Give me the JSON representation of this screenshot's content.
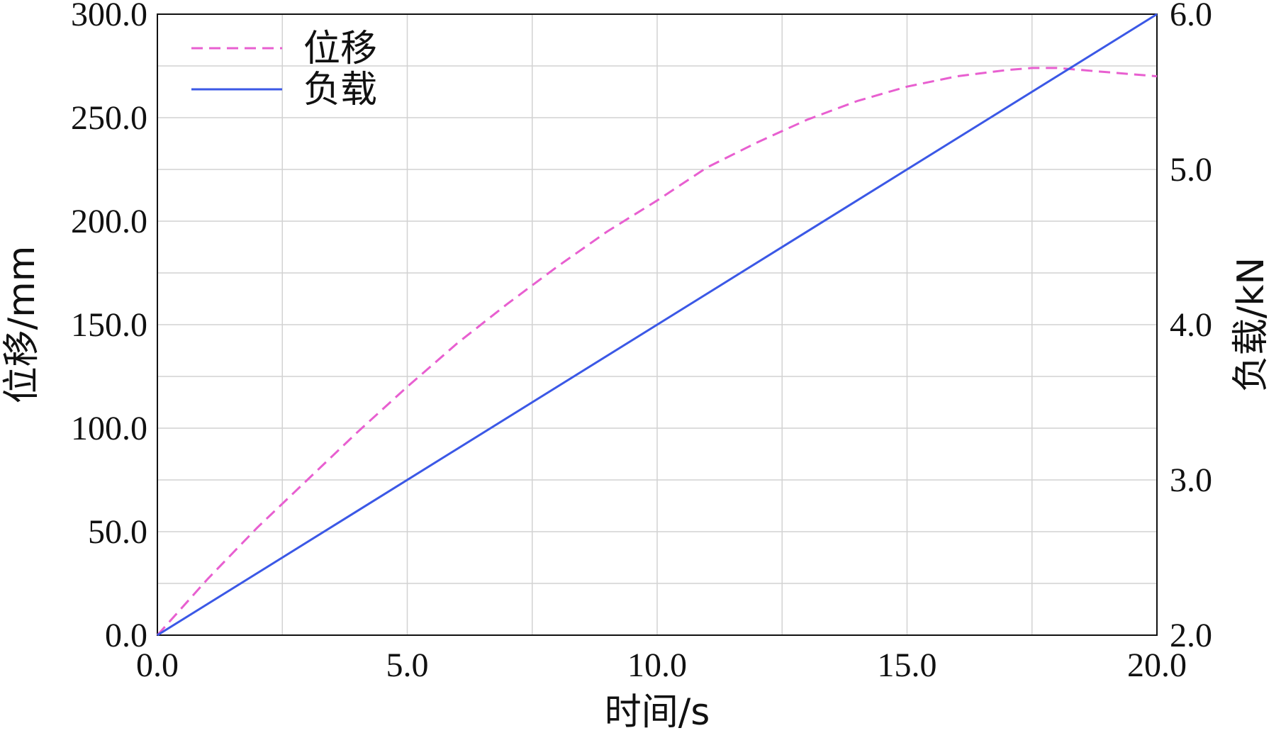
{
  "chart_data": {
    "type": "line",
    "xlabel": "时间/s",
    "ylabel_left": "位移/mm",
    "ylabel_right": "负载/kN",
    "xlim": [
      0,
      20
    ],
    "ylim_left": [
      0,
      300
    ],
    "ylim_right": [
      2,
      6
    ],
    "x_ticks": [
      "0.0",
      "5.0",
      "10.0",
      "15.0",
      "20.0"
    ],
    "y_left_ticks": [
      "0.0",
      "50.0",
      "100.0",
      "150.0",
      "200.0",
      "250.0",
      "300.0"
    ],
    "y_right_ticks": [
      "2.0",
      "3.0",
      "4.0",
      "5.0",
      "6.0"
    ],
    "grid": true,
    "legend_position": "top-left",
    "series": [
      {
        "name": "位移",
        "axis": "left",
        "color": "#e85fd0",
        "style": "dashed",
        "x": [
          0,
          1,
          2,
          3,
          4,
          5,
          6,
          7,
          8,
          9,
          10,
          11,
          12,
          13,
          14,
          15,
          16,
          17,
          17.5,
          18,
          18.5,
          19,
          19.5,
          20
        ],
        "values": [
          0,
          27,
          52,
          75,
          98,
          120,
          141,
          160,
          178,
          195,
          210,
          226,
          238,
          249,
          258,
          265,
          270,
          273,
          274,
          274,
          273,
          272,
          271,
          270
        ]
      },
      {
        "name": "负载",
        "axis": "right",
        "color": "#3b58e6",
        "style": "solid",
        "x": [
          0,
          20
        ],
        "values": [
          2.0,
          6.0
        ]
      }
    ]
  }
}
